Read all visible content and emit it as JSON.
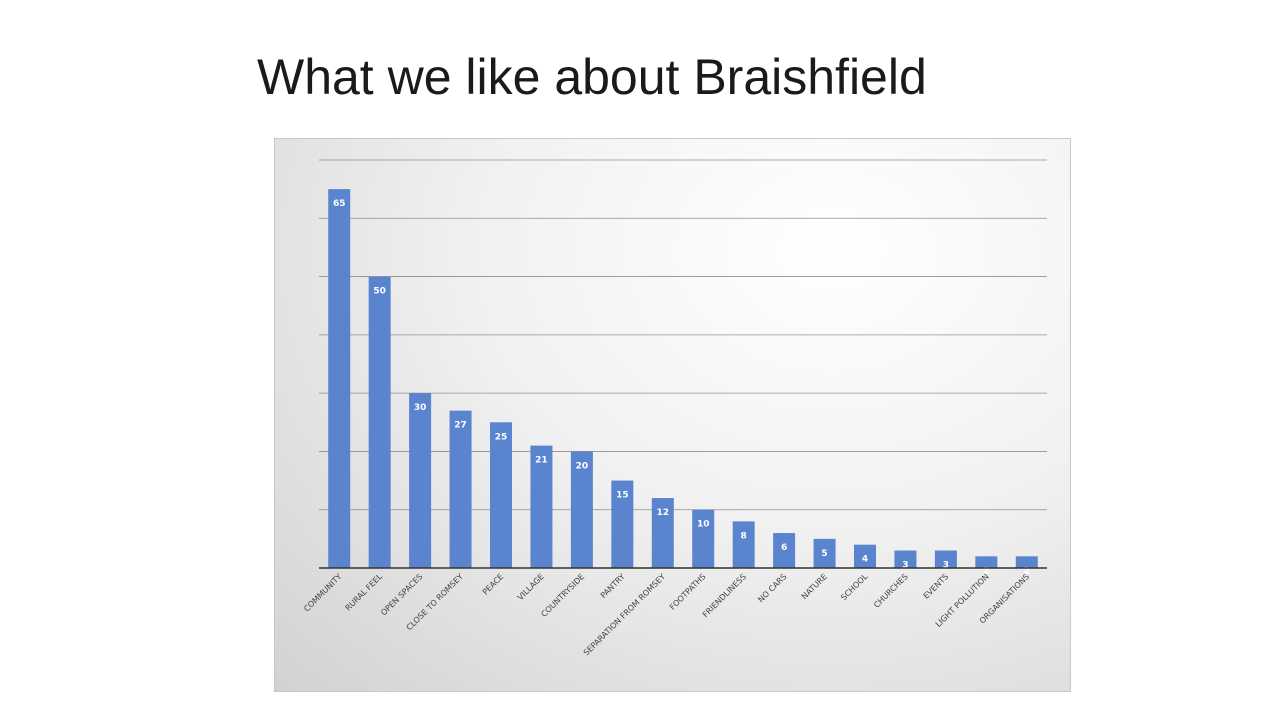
{
  "title": "What we like about Braishfield",
  "colors": {
    "bar": "#5b84cf",
    "grid": "#6e6e6e",
    "axis": "#333333"
  },
  "chart_data": {
    "type": "bar",
    "title": "",
    "xlabel": "",
    "ylabel": "",
    "ylim": [
      0,
      70
    ],
    "grid": true,
    "categories": [
      "COMMUNITY",
      "RURAL FEEL",
      "OPEN SPACES",
      "CLOSE TO ROMSEY",
      "PEACE",
      "VILLAGE",
      "COUNTRYSIDE",
      "PANTRY",
      "SEPARATION FROM ROMSEY",
      "FOOTPATHS",
      "FRIENDLINESS",
      "NO CARS",
      "NATURE",
      "SCHOOL",
      "CHURCHES",
      "EVENTS",
      "LIGHT POLLUTION",
      "ORGANISATIONS"
    ],
    "values": [
      65,
      50,
      30,
      27,
      25,
      21,
      20,
      15,
      12,
      10,
      8,
      6,
      5,
      4,
      3,
      3,
      2,
      2
    ]
  }
}
